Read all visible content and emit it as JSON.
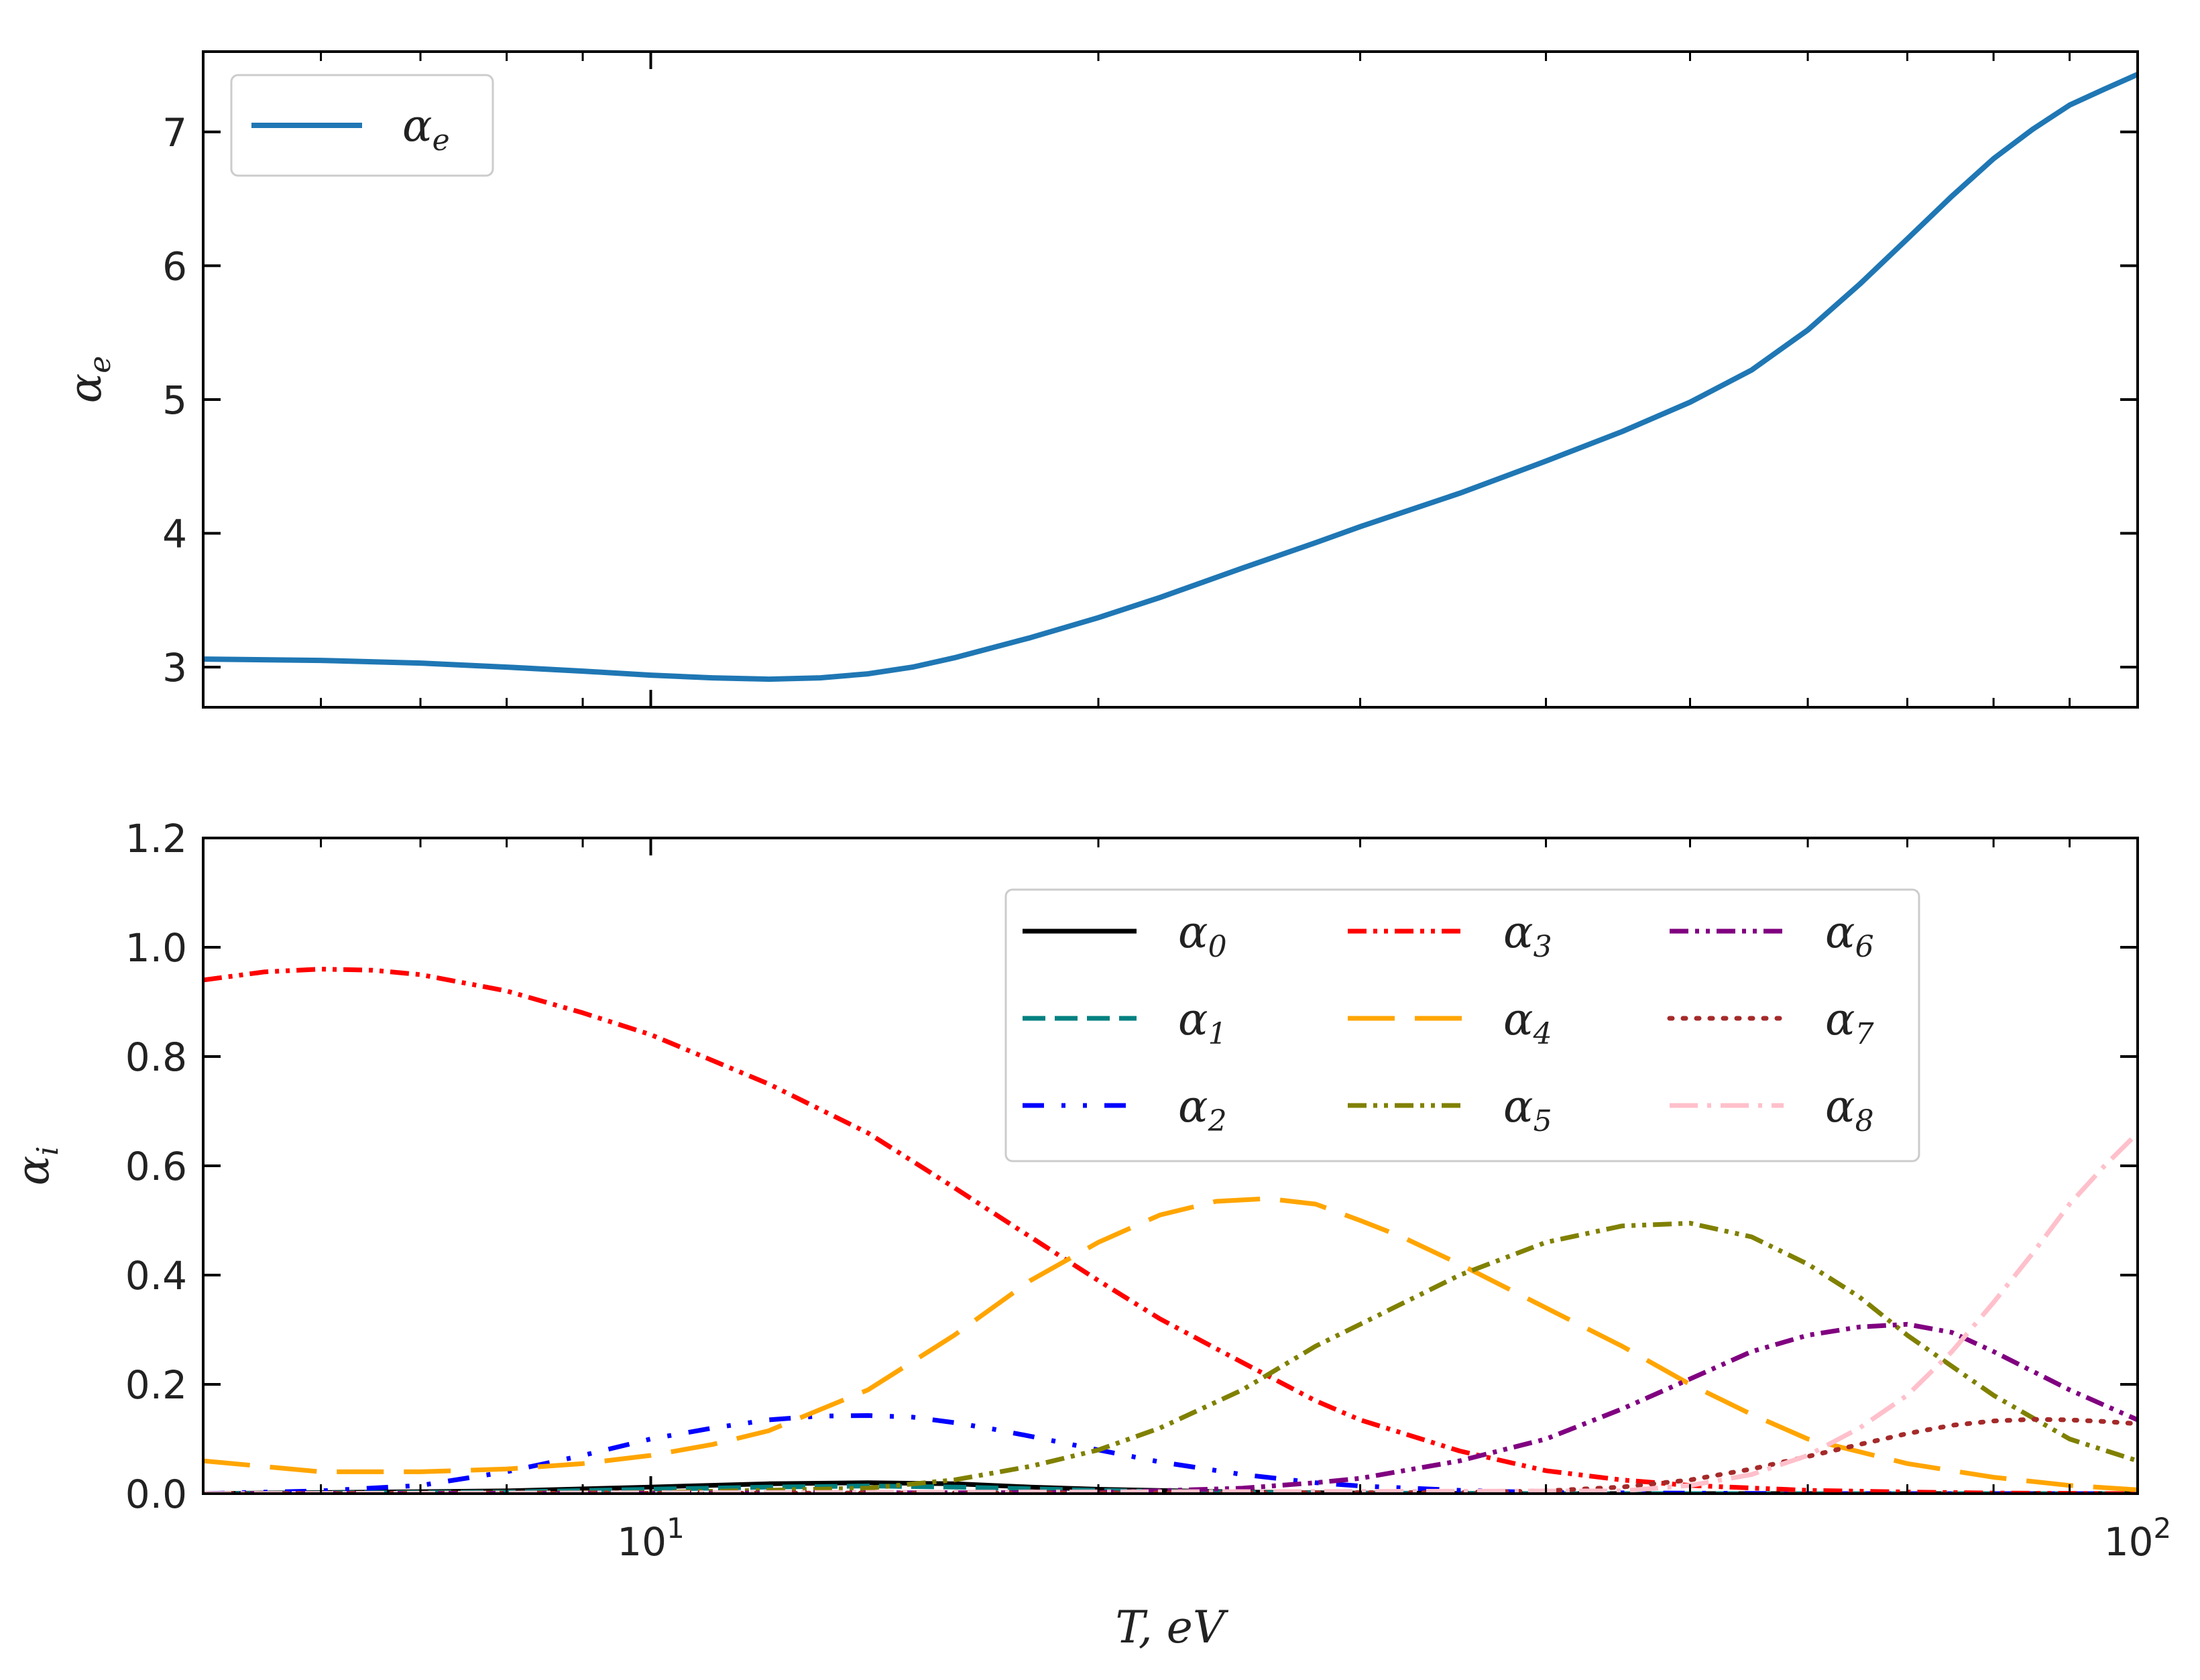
{
  "figure": {
    "chart_data": [
      {
        "type": "line",
        "title": "",
        "xlabel": "",
        "ylabel": "α_e",
        "ylabel_main": "α",
        "ylabel_sub": "e",
        "xscale": "log",
        "xlim": [
          5,
          100
        ],
        "ylim": [
          2.7,
          7.6
        ],
        "yticks": [
          3,
          4,
          5,
          6,
          7
        ],
        "ytick_labels": [
          "3",
          "4",
          "5",
          "6",
          "7"
        ],
        "grid": false,
        "legend_position": "upper-left",
        "series": [
          {
            "name": "α_e",
            "label_main": "α",
            "label_sub": "e",
            "color": "#1f77b4",
            "dash": "solid",
            "x": [
              5,
              6,
              7,
              8,
              9,
              10,
              11,
              12,
              13,
              14,
              15,
              16,
              18,
              20,
              22,
              25,
              28,
              30,
              35,
              40,
              45,
              50,
              55,
              60,
              65,
              70,
              75,
              80,
              85,
              90,
              95,
              100
            ],
            "y": [
              3.06,
              3.05,
              3.03,
              3.0,
              2.97,
              2.94,
              2.92,
              2.91,
              2.92,
              2.95,
              3.0,
              3.07,
              3.22,
              3.37,
              3.52,
              3.74,
              3.93,
              4.05,
              4.3,
              4.54,
              4.76,
              4.98,
              5.22,
              5.52,
              5.86,
              6.2,
              6.52,
              6.8,
              7.02,
              7.2,
              7.32,
              7.43
            ]
          }
        ]
      },
      {
        "type": "line",
        "title": "",
        "xlabel": "T, eV",
        "ylabel": "α_i",
        "ylabel_main": "α",
        "ylabel_sub": "i",
        "xscale": "log",
        "xlim": [
          5,
          100
        ],
        "xtick_bases": [
          "10",
          "10"
        ],
        "xtick_exps": [
          "1",
          "2"
        ],
        "ylim": [
          0.0,
          1.2
        ],
        "yticks": [
          0.0,
          0.2,
          0.4,
          0.6,
          0.8,
          1.0,
          1.2
        ],
        "ytick_labels": [
          "0.0",
          "0.2",
          "0.4",
          "0.6",
          "0.8",
          "1.0",
          "1.2"
        ],
        "grid": false,
        "legend_position": "upper-right",
        "series": [
          {
            "name": "α_0",
            "label_main": "α",
            "label_sub": "0",
            "color": "#000000",
            "dash": "solid",
            "x": [
              5,
              8,
              10,
              12,
              14,
              16,
              18,
              20,
              25,
              30,
              40,
              60,
              100
            ],
            "y": [
              0.0,
              0.005,
              0.012,
              0.018,
              0.02,
              0.018,
              0.012,
              0.008,
              0.003,
              0.001,
              0.0,
              0.0,
              0.0
            ]
          },
          {
            "name": "α_1",
            "label_main": "α",
            "label_sub": "1",
            "color": "#008080",
            "dash": "dashed",
            "x": [
              5,
              8,
              10,
              12,
              14,
              16,
              20,
              25,
              30,
              40,
              60,
              100
            ],
            "y": [
              0.0,
              0.003,
              0.008,
              0.012,
              0.014,
              0.012,
              0.006,
              0.002,
              0.001,
              0.0,
              0.0,
              0.0
            ]
          },
          {
            "name": "α_2",
            "label_main": "α",
            "label_sub": "2",
            "color": "#0000ff",
            "dash": "dashdotdot-sparse",
            "x": [
              5,
              6,
              7,
              8,
              9,
              10,
              11,
              12,
              13,
              14,
              15,
              16,
              17,
              18,
              20,
              22,
              25,
              28,
              30,
              35,
              40,
              60,
              100
            ],
            "y": [
              0.0,
              0.005,
              0.015,
              0.04,
              0.07,
              0.1,
              0.12,
              0.135,
              0.142,
              0.143,
              0.14,
              0.13,
              0.118,
              0.105,
              0.08,
              0.058,
              0.035,
              0.02,
              0.014,
              0.006,
              0.002,
              0.0,
              0.0
            ]
          },
          {
            "name": "α_3",
            "label_main": "α",
            "label_sub": "3",
            "color": "#ff0000",
            "dash": "dashdotdot",
            "x": [
              5,
              5.5,
              6,
              6.5,
              7,
              8,
              9,
              10,
              12,
              14,
              16,
              18,
              20,
              22,
              25,
              28,
              30,
              35,
              40,
              45,
              50,
              60,
              70,
              80,
              100
            ],
            "y": [
              0.94,
              0.955,
              0.96,
              0.958,
              0.95,
              0.92,
              0.88,
              0.84,
              0.75,
              0.66,
              0.56,
              0.47,
              0.39,
              0.32,
              0.24,
              0.17,
              0.135,
              0.078,
              0.042,
              0.025,
              0.015,
              0.006,
              0.003,
              0.001,
              0.0
            ]
          },
          {
            "name": "α_4",
            "label_main": "α",
            "label_sub": "4",
            "color": "#ffa500",
            "dash": "longdash",
            "x": [
              5,
              6,
              7,
              8,
              9,
              10,
              11,
              12,
              14,
              16,
              18,
              20,
              22,
              24,
              26,
              28,
              30,
              32,
              35,
              40,
              45,
              50,
              55,
              60,
              70,
              80,
              90,
              100
            ],
            "y": [
              0.06,
              0.04,
              0.04,
              0.045,
              0.055,
              0.07,
              0.09,
              0.115,
              0.19,
              0.29,
              0.39,
              0.46,
              0.51,
              0.535,
              0.54,
              0.53,
              0.5,
              0.47,
              0.42,
              0.34,
              0.27,
              0.2,
              0.145,
              0.1,
              0.055,
              0.03,
              0.015,
              0.007
            ]
          },
          {
            "name": "α_5",
            "label_main": "α",
            "label_sub": "5",
            "color": "#808000",
            "dash": "dashdotdot",
            "x": [
              5,
              10,
              14,
              16,
              18,
              20,
              22,
              25,
              28,
              30,
              35,
              40,
              45,
              50,
              55,
              60,
              65,
              70,
              80,
              90,
              100
            ],
            "y": [
              0.0,
              0.002,
              0.01,
              0.025,
              0.05,
              0.08,
              0.12,
              0.19,
              0.27,
              0.31,
              0.4,
              0.46,
              0.49,
              0.495,
              0.47,
              0.42,
              0.36,
              0.29,
              0.18,
              0.1,
              0.06
            ]
          },
          {
            "name": "α_6",
            "label_main": "α",
            "label_sub": "6",
            "color": "#800080",
            "dash": "dashdotdot",
            "x": [
              5,
              20,
              25,
              28,
              30,
              35,
              40,
              45,
              50,
              55,
              60,
              65,
              70,
              75,
              80,
              90,
              100
            ],
            "y": [
              0.0,
              0.002,
              0.01,
              0.02,
              0.028,
              0.06,
              0.1,
              0.155,
              0.21,
              0.26,
              0.29,
              0.305,
              0.31,
              0.295,
              0.26,
              0.19,
              0.135
            ]
          },
          {
            "name": "α_7",
            "label_main": "α",
            "label_sub": "7",
            "color": "#a52a2a",
            "dash": "dotted",
            "x": [
              5,
              35,
              40,
              45,
              50,
              55,
              60,
              65,
              70,
              75,
              80,
              85,
              90,
              95,
              100
            ],
            "y": [
              0.0,
              0.002,
              0.005,
              0.012,
              0.025,
              0.045,
              0.068,
              0.09,
              0.11,
              0.125,
              0.133,
              0.136,
              0.135,
              0.132,
              0.128
            ]
          },
          {
            "name": "α_8",
            "label_main": "α",
            "label_sub": "8",
            "color": "#ffc0cb",
            "dash": "dashdot",
            "x": [
              5,
              45,
              50,
              55,
              60,
              65,
              70,
              75,
              80,
              85,
              90,
              95,
              100
            ],
            "y": [
              0.0,
              0.005,
              0.015,
              0.035,
              0.07,
              0.12,
              0.18,
              0.26,
              0.35,
              0.44,
              0.53,
              0.6,
              0.66
            ]
          }
        ]
      }
    ]
  }
}
